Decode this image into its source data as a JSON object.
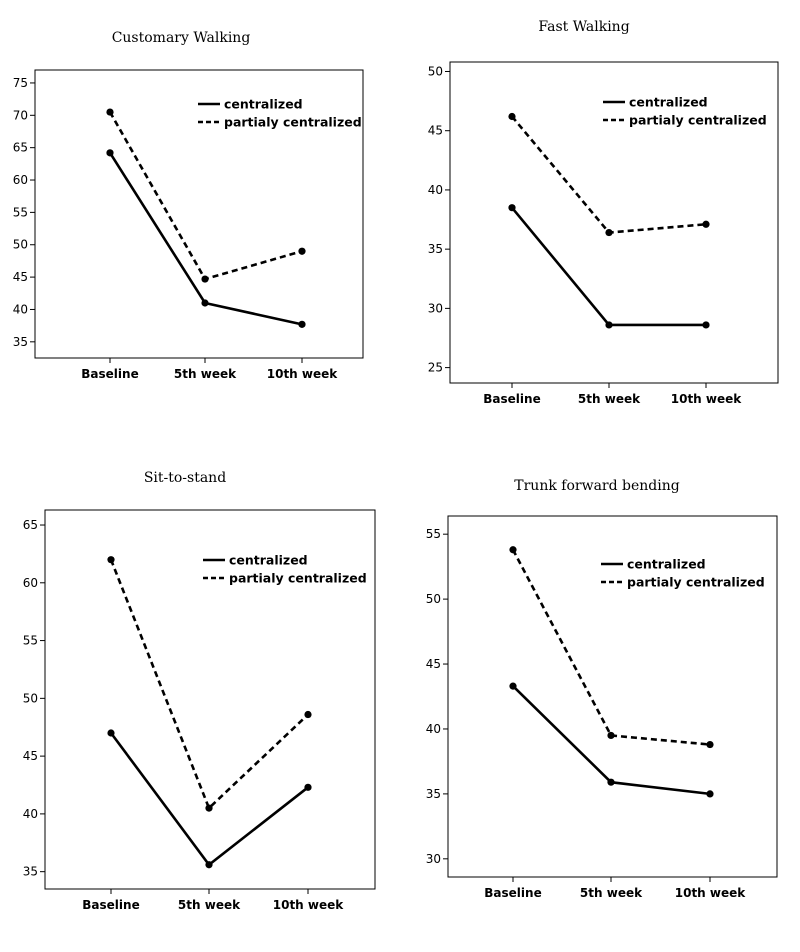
{
  "chart_data": [
    {
      "type": "line",
      "title": "Customary Walking",
      "categories": [
        "Baseline",
        "5th week",
        "10th week"
      ],
      "yticks": [
        35,
        40,
        45,
        50,
        55,
        60,
        65,
        70,
        75
      ],
      "ylim": [
        32.5,
        77
      ],
      "series": [
        {
          "name": "centralized",
          "style": "solid",
          "values": [
            64.2,
            41.0,
            37.7
          ]
        },
        {
          "name": "partialy centralized",
          "style": "dashed",
          "values": [
            70.5,
            44.7,
            49.0
          ]
        }
      ],
      "legend": "top-right",
      "grid": false
    },
    {
      "type": "line",
      "title": "Fast Walking",
      "categories": [
        "Baseline",
        "5th week",
        "10th week"
      ],
      "yticks": [
        25,
        30,
        35,
        40,
        45,
        50
      ],
      "ylim": [
        23.7,
        50.8
      ],
      "series": [
        {
          "name": "centralized",
          "style": "solid",
          "values": [
            38.5,
            28.6,
            28.6
          ]
        },
        {
          "name": "partialy centralized",
          "style": "dashed",
          "values": [
            46.2,
            36.4,
            37.1
          ]
        }
      ],
      "legend": "top-right",
      "grid": false
    },
    {
      "type": "line",
      "title": "Sit-to-stand",
      "categories": [
        "Baseline",
        "5th week",
        "10th week"
      ],
      "yticks": [
        35,
        40,
        45,
        50,
        55,
        60,
        65
      ],
      "ylim": [
        33.5,
        66.3
      ],
      "series": [
        {
          "name": "centralized",
          "style": "solid",
          "values": [
            47.0,
            35.6,
            42.3
          ]
        },
        {
          "name": "partialy centralized",
          "style": "dashed",
          "values": [
            62.0,
            40.5,
            48.6
          ]
        }
      ],
      "legend": "top-right",
      "grid": false
    },
    {
      "type": "line",
      "title": "Trunk forward bending",
      "categories": [
        "Baseline",
        "5th week",
        "10th week"
      ],
      "yticks": [
        30,
        35,
        40,
        45,
        50,
        55
      ],
      "ylim": [
        28.6,
        56.4
      ],
      "series": [
        {
          "name": "centralized",
          "style": "solid",
          "values": [
            43.3,
            35.9,
            35.0
          ]
        },
        {
          "name": "partialy centralized",
          "style": "dashed",
          "values": [
            53.8,
            39.5,
            38.8
          ]
        }
      ],
      "legend": "top-right",
      "grid": false
    }
  ]
}
